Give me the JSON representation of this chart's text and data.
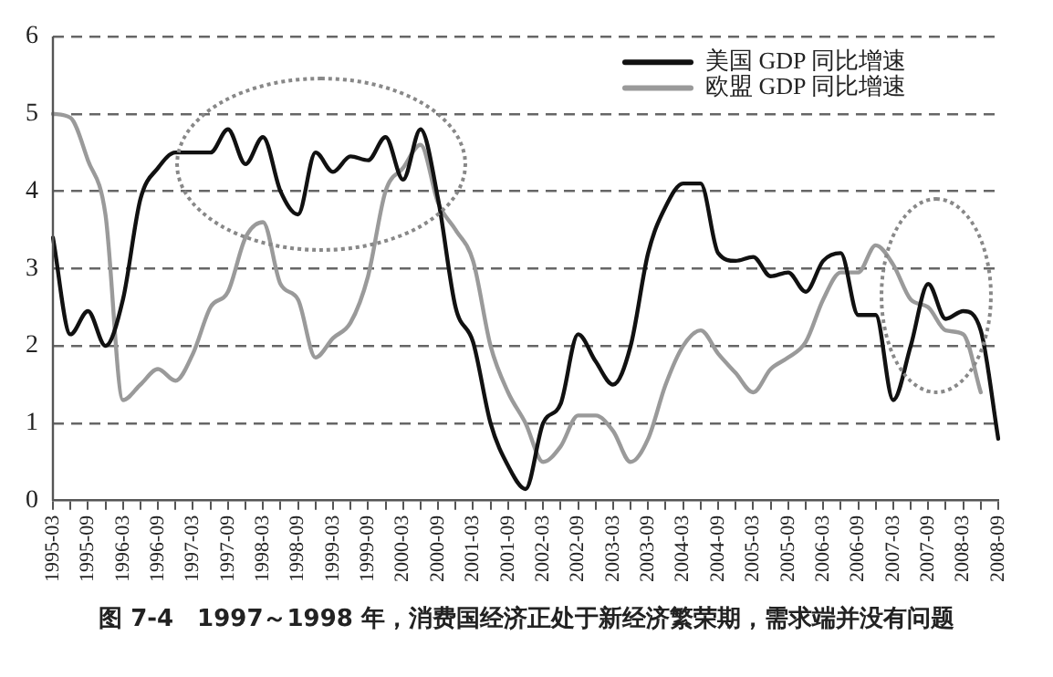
{
  "chart_data": {
    "type": "line",
    "categories": [
      "1995-03",
      null,
      "1995-09",
      null,
      "1996-03",
      null,
      "1996-09",
      null,
      "1997-03",
      null,
      "1997-09",
      null,
      "1998-03",
      null,
      "1998-09",
      null,
      "1999-03",
      null,
      "1999-09",
      null,
      "2000-03",
      null,
      "2000-09",
      null,
      "2001-03",
      null,
      "2001-09",
      null,
      "2002-03",
      null,
      "2002-09",
      null,
      "2003-03",
      null,
      "2003-09",
      null,
      "2004-03",
      null,
      "2004-09",
      null,
      "2005-03",
      null,
      "2005-09",
      null,
      "2006-03",
      null,
      "2006-09",
      null,
      "2007-03",
      null,
      "2007-09",
      null,
      "2008-03",
      null,
      "2008-09"
    ],
    "series": [
      {
        "name": "美国 GDP 同比增速",
        "color": "#111111",
        "values": [
          3.4,
          2.15,
          2.45,
          2.0,
          2.6,
          3.9,
          4.3,
          4.5,
          4.5,
          4.5,
          4.8,
          4.35,
          4.7,
          4.0,
          3.7,
          4.5,
          4.25,
          4.45,
          4.4,
          4.7,
          4.15,
          4.8,
          3.9,
          2.5,
          2.05,
          1.0,
          0.45,
          0.15,
          1.0,
          1.25,
          2.15,
          1.8,
          1.5,
          2.0,
          3.2,
          3.8,
          4.1,
          4.1,
          3.2,
          3.1,
          3.15,
          2.9,
          2.95,
          2.7,
          3.1,
          3.2,
          2.4,
          2.4,
          1.3,
          2.0,
          2.8,
          2.35,
          2.45,
          2.2,
          0.8
        ]
      },
      {
        "name": "欧盟 GDP 同比增速",
        "color": "#9a9a9a",
        "values": [
          5.0,
          4.95,
          4.4,
          3.7,
          1.3,
          1.5,
          1.7,
          1.55,
          1.9,
          2.5,
          2.7,
          3.4,
          3.6,
          2.8,
          2.6,
          1.85,
          2.1,
          2.3,
          2.9,
          4.0,
          4.3,
          4.6,
          3.85,
          3.5,
          3.1,
          2.0,
          1.4,
          1.0,
          0.5,
          0.7,
          1.1,
          1.1,
          0.9,
          0.5,
          0.8,
          1.5,
          2.0,
          2.2,
          1.9,
          1.65,
          1.4,
          1.7,
          1.85,
          2.05,
          2.6,
          2.95,
          2.95,
          3.3,
          3.05,
          2.6,
          2.5,
          2.2,
          2.15,
          1.4,
          null
        ]
      }
    ],
    "ylim": [
      0,
      6
    ],
    "yticks": [
      0,
      1,
      2,
      3,
      4,
      5,
      6
    ],
    "grid": "y",
    "legend": "top right",
    "marker": "none",
    "annotations": [
      "图 7-4　1997～1998 年，消费国经济正处于新经济繁荣期，需求端并没有问题"
    ]
  }
}
